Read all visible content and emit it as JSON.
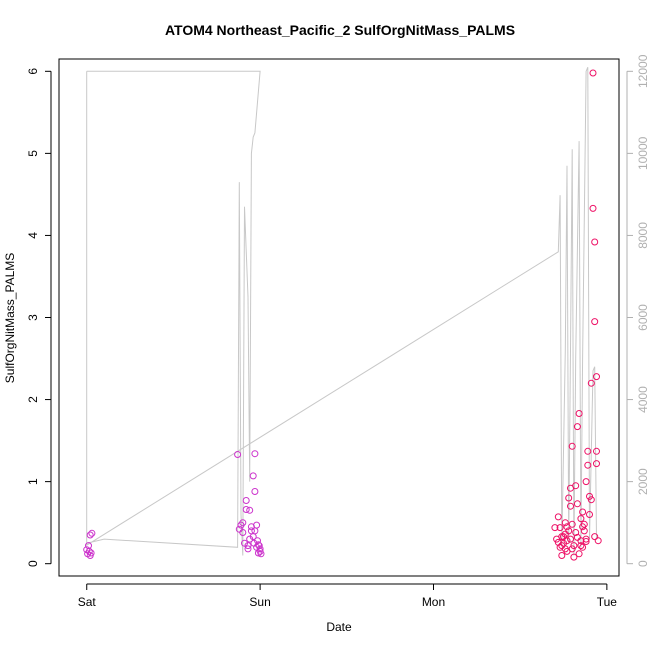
{
  "chart_data": {
    "type": "scatter",
    "title": "ATOM4 Northeast_Pacific_2 SulfOrgNitMass_PALMS",
    "xlabel": "Date",
    "ylabel": "SulfOrgNitMass_PALMS",
    "x_ticks": [
      {
        "label": "Sat",
        "day": 0
      },
      {
        "label": "Sun",
        "day": 1
      },
      {
        "label": "Mon",
        "day": 2
      },
      {
        "label": "Tue",
        "day": 3
      }
    ],
    "xlim_days": [
      -0.16,
      3.07
    ],
    "ylim": [
      -0.15,
      6.15
    ],
    "y_ticks": [
      0,
      1,
      2,
      3,
      4,
      5,
      6
    ],
    "y2lim": [
      -300,
      12300
    ],
    "y2_ticks": [
      0,
      2000,
      4000,
      6000,
      8000,
      10000,
      12000
    ],
    "grid": false,
    "colors": {
      "points_early": "#cc33cc",
      "points_late": "#ee1166",
      "secondary_line": "#c8c8c8",
      "axis": "#000000",
      "right_axis": "#b0b0b0"
    },
    "series": [
      {
        "kind": "points",
        "points": [
          [
            0.0,
            0.17
          ],
          [
            0.01,
            0.22
          ],
          [
            0.02,
            0.35
          ],
          [
            0.005,
            0.12
          ],
          [
            0.015,
            0.15
          ],
          [
            0.02,
            0.1
          ],
          [
            0.03,
            0.37
          ],
          [
            0.025,
            0.13
          ],
          [
            0.87,
            1.33
          ],
          [
            0.88,
            0.42
          ],
          [
            0.89,
            0.47
          ],
          [
            0.9,
            0.5
          ],
          [
            0.9,
            0.38
          ],
          [
            0.91,
            0.25
          ],
          [
            0.92,
            0.77
          ],
          [
            0.92,
            0.66
          ],
          [
            0.93,
            0.18
          ],
          [
            0.93,
            0.22
          ],
          [
            0.94,
            0.65
          ],
          [
            0.94,
            0.3
          ],
          [
            0.95,
            0.45
          ],
          [
            0.95,
            0.4
          ],
          [
            0.96,
            1.07
          ],
          [
            0.96,
            0.33
          ],
          [
            0.965,
            0.25
          ],
          [
            0.97,
            1.34
          ],
          [
            0.97,
            0.88
          ],
          [
            0.98,
            0.47
          ],
          [
            0.98,
            0.2
          ],
          [
            0.99,
            0.23
          ],
          [
            0.99,
            0.13
          ],
          [
            1.0,
            0.18
          ],
          [
            1.0,
            0.15
          ],
          [
            1.005,
            0.12
          ],
          [
            0.97,
            0.4
          ],
          [
            0.985,
            0.28
          ],
          [
            0.995,
            0.22
          ],
          [
            2.7,
            0.44
          ],
          [
            2.71,
            0.3
          ],
          [
            2.72,
            0.57
          ],
          [
            2.72,
            0.26
          ],
          [
            2.73,
            0.2
          ],
          [
            2.73,
            0.44
          ],
          [
            2.74,
            0.1
          ],
          [
            2.74,
            0.33
          ],
          [
            2.75,
            0.25
          ],
          [
            2.75,
            0.33
          ],
          [
            2.76,
            0.5
          ],
          [
            2.76,
            0.18
          ],
          [
            2.77,
            0.28
          ],
          [
            2.77,
            0.15
          ],
          [
            2.78,
            0.4
          ],
          [
            2.78,
            0.8
          ],
          [
            2.79,
            0.7
          ],
          [
            2.79,
            0.3
          ],
          [
            2.8,
            1.43
          ],
          [
            2.8,
            0.48
          ],
          [
            2.81,
            0.22
          ],
          [
            2.81,
            0.08
          ],
          [
            2.82,
            0.95
          ],
          [
            2.82,
            0.38
          ],
          [
            2.83,
            1.67
          ],
          [
            2.83,
            0.32
          ],
          [
            2.84,
            1.83
          ],
          [
            2.84,
            0.12
          ],
          [
            2.85,
            0.55
          ],
          [
            2.85,
            0.28
          ],
          [
            2.86,
            0.63
          ],
          [
            2.86,
            0.2
          ],
          [
            2.87,
            0.48
          ],
          [
            2.87,
            0.4
          ],
          [
            2.88,
            1.0
          ],
          [
            2.88,
            0.3
          ],
          [
            2.89,
            1.2
          ],
          [
            2.89,
            1.37
          ],
          [
            2.9,
            0.82
          ],
          [
            2.9,
            0.6
          ],
          [
            2.91,
            2.2
          ],
          [
            2.91,
            0.78
          ],
          [
            2.92,
            5.98
          ],
          [
            2.92,
            4.33
          ],
          [
            2.93,
            3.92
          ],
          [
            2.93,
            2.95
          ],
          [
            2.94,
            2.28
          ],
          [
            2.94,
            1.37
          ],
          [
            2.94,
            1.22
          ],
          [
            2.95,
            0.28
          ],
          [
            2.93,
            0.33
          ],
          [
            2.85,
            0.22
          ],
          [
            2.76,
            0.36
          ],
          [
            2.79,
            0.92
          ],
          [
            2.83,
            0.73
          ],
          [
            2.88,
            0.27
          ],
          [
            2.74,
            0.22
          ],
          [
            2.77,
            0.45
          ],
          [
            2.8,
            0.18
          ],
          [
            2.86,
            0.45
          ]
        ]
      },
      {
        "kind": "line",
        "axis": "right",
        "points": [
          [
            0.0,
            12000
          ],
          [
            1.0,
            12000
          ],
          [
            1.0,
            12000
          ],
          [
            0.97,
            10500
          ],
          [
            0.96,
            10400
          ],
          [
            0.95,
            10000
          ],
          [
            0.94,
            2000
          ],
          [
            0.93,
            6500
          ],
          [
            0.91,
            8700
          ],
          [
            0.9,
            200
          ],
          [
            0.89,
            1200
          ],
          [
            0.88,
            9300
          ],
          [
            0.87,
            400
          ],
          [
            0.1,
            600
          ],
          [
            0.0,
            500
          ],
          [
            0.0,
            12000
          ],
          [
            0.0,
            500
          ],
          [
            0.0,
            450
          ],
          [
            2.72,
            7600
          ],
          [
            2.73,
            8980
          ],
          [
            2.74,
            400
          ],
          [
            2.76,
            5200
          ],
          [
            2.77,
            9700
          ],
          [
            2.78,
            500
          ],
          [
            2.79,
            5200
          ],
          [
            2.8,
            10100
          ],
          [
            2.81,
            200
          ],
          [
            2.82,
            5000
          ],
          [
            2.84,
            10300
          ],
          [
            2.85,
            400
          ],
          [
            2.86,
            5000
          ],
          [
            2.88,
            12000
          ],
          [
            2.89,
            12100
          ],
          [
            2.9,
            600
          ],
          [
            2.92,
            4700
          ],
          [
            2.93,
            4800
          ],
          [
            2.94,
            600
          ]
        ]
      }
    ]
  }
}
